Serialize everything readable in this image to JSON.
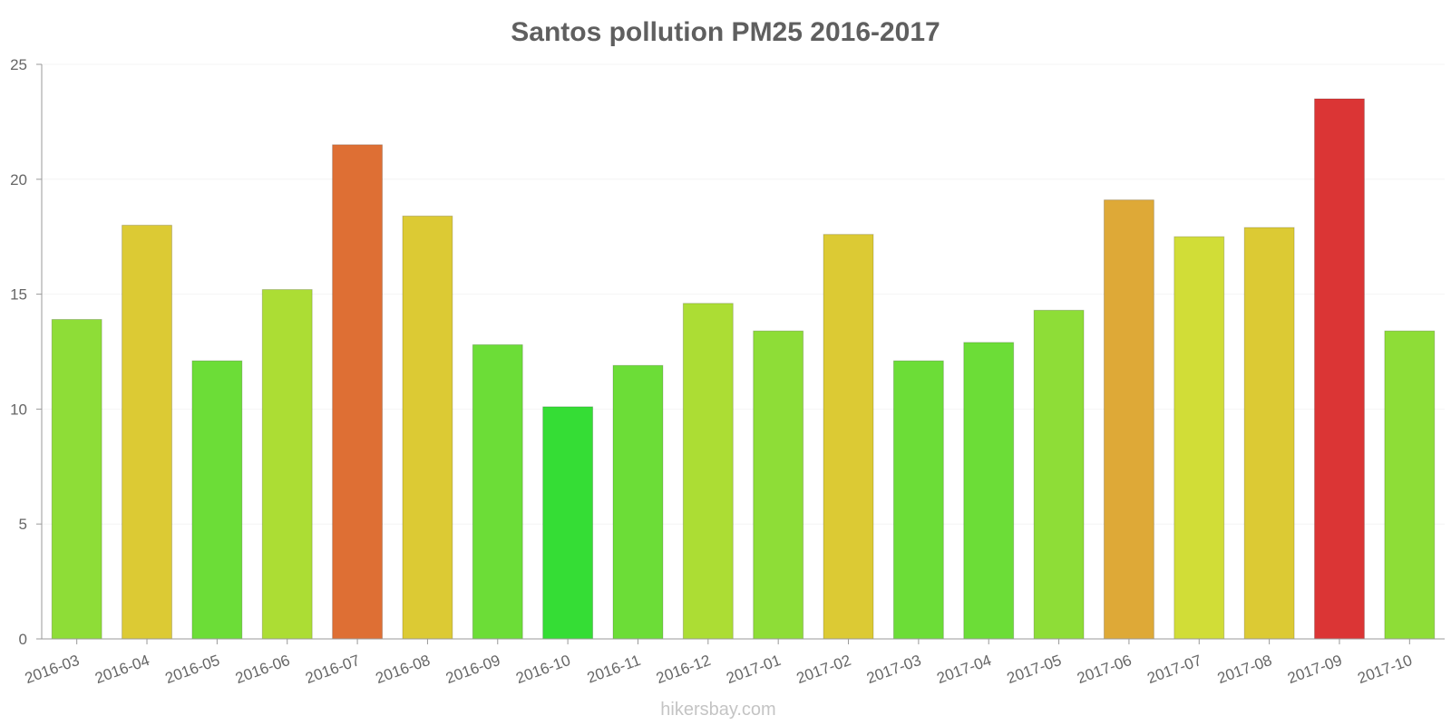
{
  "chart_data": {
    "type": "bar",
    "title": "Santos pollution PM25 2016-2017",
    "xlabel": "",
    "ylabel": "",
    "ylim": [
      0,
      25
    ],
    "yticks": [
      0,
      5,
      10,
      15,
      20,
      25
    ],
    "grid": true,
    "legend": "none",
    "categories": [
      "2016-03",
      "2016-04",
      "2016-05",
      "2016-06",
      "2016-07",
      "2016-08",
      "2016-09",
      "2016-10",
      "2016-11",
      "2016-12",
      "2017-01",
      "2017-02",
      "2017-03",
      "2017-04",
      "2017-05",
      "2017-06",
      "2017-07",
      "2017-08",
      "2017-09",
      "2017-10"
    ],
    "values": [
      13.9,
      18.0,
      12.1,
      15.2,
      21.5,
      18.4,
      12.8,
      10.1,
      11.9,
      14.6,
      13.4,
      17.6,
      12.1,
      12.9,
      14.3,
      19.1,
      17.5,
      17.9,
      23.5,
      13.4
    ],
    "colors": [
      "#8edd37",
      "#dcca34",
      "#6cdd37",
      "#acdd34",
      "#de6f34",
      "#dcca34",
      "#6cdd37",
      "#35dd35",
      "#6cdd37",
      "#acdd34",
      "#8edd37",
      "#dcca34",
      "#6cdd37",
      "#6cdd37",
      "#8edd37",
      "#dea937",
      "#d1dd37",
      "#dcca34",
      "#db3535",
      "#8edd37"
    ]
  },
  "watermark": "hikersbay.com"
}
